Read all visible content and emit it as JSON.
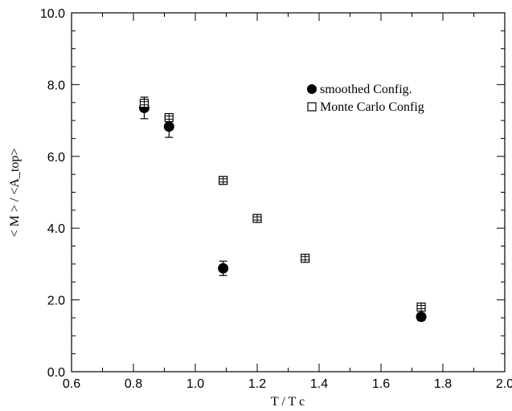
{
  "chart_data": {
    "type": "scatter",
    "xlabel": "T / T  c",
    "ylabel": "< M > / <A_top>",
    "xlim": [
      0.6,
      2.0
    ],
    "ylim": [
      0.0,
      10.0
    ],
    "x_ticks": [
      "0.6",
      "0.8",
      "1.0",
      "1.2",
      "1.4",
      "1.6",
      "1.8",
      "2.0"
    ],
    "y_ticks": [
      "0.0",
      "2.0",
      "4.0",
      "6.0",
      "8.0",
      "10.0"
    ],
    "x_tick_values": [
      0.6,
      0.8,
      1.0,
      1.2,
      1.4,
      1.6,
      1.8,
      2.0
    ],
    "y_tick_values": [
      0,
      2,
      4,
      6,
      8,
      10
    ],
    "grid": false,
    "legend_position": "top-right",
    "series": [
      {
        "name": "smoothed Config.",
        "marker": "filled-circle",
        "points": [
          {
            "x": 0.835,
            "y": 7.35,
            "err": 0.3
          },
          {
            "x": 0.915,
            "y": 6.83,
            "err": 0.3
          },
          {
            "x": 1.09,
            "y": 2.88,
            "err": 0.2
          },
          {
            "x": 1.73,
            "y": 1.53,
            "err": 0.1
          }
        ]
      },
      {
        "name": "Monte Carlo Config",
        "marker": "open-square",
        "points": [
          {
            "x": 0.835,
            "y": 7.48,
            "err": 0.08
          },
          {
            "x": 0.915,
            "y": 7.08,
            "err": 0.08
          },
          {
            "x": 1.09,
            "y": 5.33,
            "err": 0.06
          },
          {
            "x": 1.2,
            "y": 4.27,
            "err": 0.05
          },
          {
            "x": 1.355,
            "y": 3.16,
            "err": 0.05
          },
          {
            "x": 1.73,
            "y": 1.8,
            "err": 0.05
          }
        ]
      }
    ]
  }
}
